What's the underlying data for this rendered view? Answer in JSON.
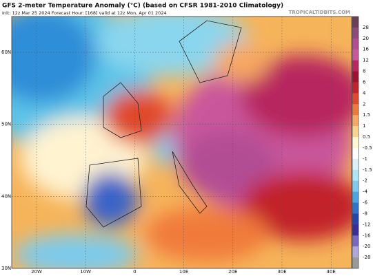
{
  "header": {
    "title": "GFS 2-meter Temperature Anomaly (°C) (based on CFSR 1981-2010 Climatology)",
    "subtitle": "Init: 12z Mar 25 2024   Forecast Hour: [168]   valid at 12z Mon, Apr 01 2024",
    "watermark": "TROPICALTIDBITS.COM"
  },
  "map": {
    "latitudes": [
      "60N",
      "50N",
      "40N",
      "30N"
    ],
    "longitudes": [
      "20W",
      "10W",
      "0",
      "10E",
      "20E",
      "30E",
      "40E"
    ]
  },
  "colorbar": {
    "labels": [
      28,
      20,
      16,
      12,
      8,
      6,
      4,
      2,
      1.5,
      1,
      0.5,
      -0.5,
      -1,
      -1.5,
      -2,
      -4,
      -6,
      -8,
      -12,
      -16,
      -20,
      -28
    ],
    "colors": [
      "#6b3f55",
      "#8e4a78",
      "#b24d94",
      "#c9579b",
      "#b8285f",
      "#9e1430",
      "#c2222a",
      "#e04a2c",
      "#f07a3a",
      "#f7a860",
      "#fbd38a",
      "#fff8d0",
      "#ffffff",
      "#d8f4f8",
      "#aee6f4",
      "#7ccbec",
      "#4aa6e0",
      "#2f74cc",
      "#2546a8",
      "#3b2d95",
      "#7a68c0",
      "#b1a5da",
      "#9a9a9a"
    ]
  }
}
